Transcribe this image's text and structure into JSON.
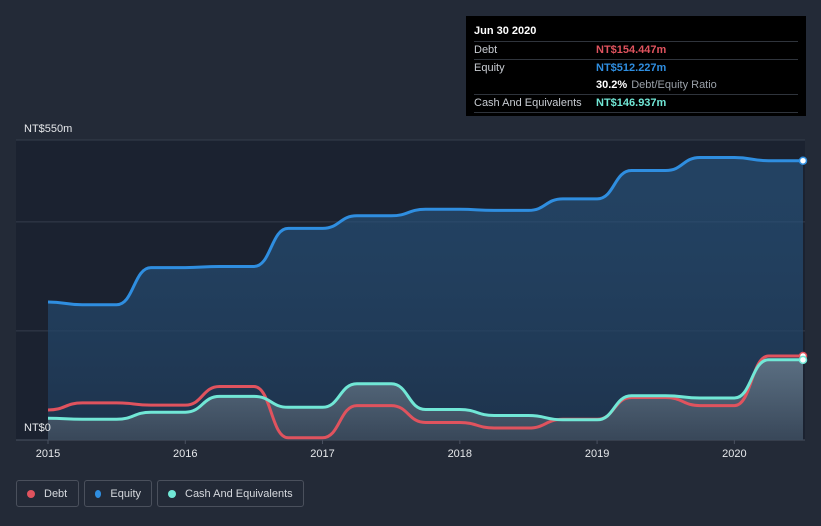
{
  "tooltip": {
    "date": "Jun 30 2020",
    "debt_label": "Debt",
    "debt_value": "NT$154.447m",
    "equity_label": "Equity",
    "equity_value": "NT$512.227m",
    "ratio_value": "30.2%",
    "ratio_label": "Debt/Equity Ratio",
    "cash_label": "Cash And Equivalents",
    "cash_value": "NT$146.937m"
  },
  "legend": {
    "debt": "Debt",
    "equity": "Equity",
    "cash": "Cash And Equivalents"
  },
  "colors": {
    "debt": "#e0535e",
    "equity": "#2f8ee0",
    "cash": "#71e7d6",
    "background": "#232a37",
    "plot_background": "#1b2230"
  },
  "chart_data": {
    "type": "area",
    "ylim": [
      0,
      550
    ],
    "y_tick_labels": [
      "NT$0",
      "NT$550m"
    ],
    "x_tick_labels": [
      "2015",
      "2016",
      "2017",
      "2018",
      "2019",
      "2020"
    ],
    "xlim": [
      2015.0,
      2020.5
    ],
    "grid": true,
    "legend_position": "bottom-left",
    "series": [
      {
        "name": "Equity",
        "color": "#2f8ee0",
        "x": [
          2015.0,
          2015.25,
          2015.5,
          2015.75,
          2016.0,
          2016.25,
          2016.5,
          2016.75,
          2017.0,
          2017.25,
          2017.5,
          2017.75,
          2018.0,
          2018.25,
          2018.5,
          2018.75,
          2019.0,
          2019.25,
          2019.5,
          2019.75,
          2020.0,
          2020.25,
          2020.5
        ],
        "values": [
          253,
          248,
          248,
          316,
          316,
          318,
          318,
          388,
          388,
          411,
          411,
          423,
          423,
          421,
          421,
          442,
          442,
          494,
          494,
          518,
          518,
          512,
          512
        ]
      },
      {
        "name": "Debt",
        "color": "#e0535e",
        "x": [
          2015.0,
          2015.25,
          2015.5,
          2015.75,
          2016.0,
          2016.25,
          2016.5,
          2016.75,
          2017.0,
          2017.25,
          2017.5,
          2017.75,
          2018.0,
          2018.25,
          2018.5,
          2018.75,
          2019.0,
          2019.25,
          2019.5,
          2019.75,
          2020.0,
          2020.25,
          2020.5
        ],
        "values": [
          55,
          68,
          68,
          64,
          64,
          98,
          98,
          4,
          4,
          63,
          63,
          32,
          32,
          22,
          22,
          38,
          38,
          78,
          78,
          63,
          63,
          154,
          154
        ]
      },
      {
        "name": "Cash And Equivalents",
        "color": "#71e7d6",
        "x": [
          2015.0,
          2015.25,
          2015.5,
          2015.75,
          2016.0,
          2016.25,
          2016.5,
          2016.75,
          2017.0,
          2017.25,
          2017.5,
          2017.75,
          2018.0,
          2018.25,
          2018.5,
          2018.75,
          2019.0,
          2019.25,
          2019.5,
          2019.75,
          2020.0,
          2020.25,
          2020.5
        ],
        "values": [
          40,
          38,
          38,
          51,
          51,
          80,
          80,
          60,
          60,
          103,
          103,
          56,
          56,
          45,
          45,
          37,
          37,
          81,
          81,
          77,
          77,
          147,
          147
        ]
      }
    ]
  }
}
